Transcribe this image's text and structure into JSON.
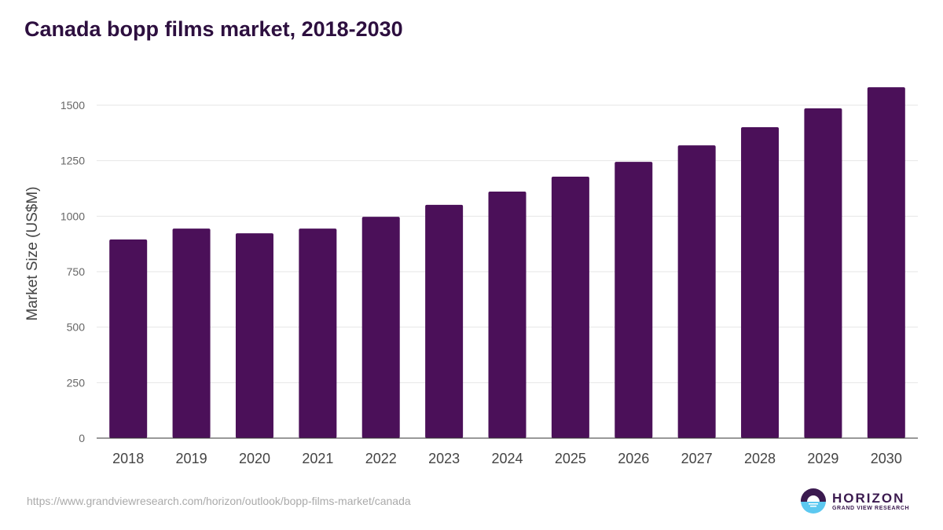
{
  "chart_data": {
    "type": "bar",
    "title": "Canada bopp films market, 2018-2030",
    "xlabel": "",
    "ylabel": "Market Size (US$M)",
    "categories": [
      "2018",
      "2019",
      "2020",
      "2021",
      "2022",
      "2023",
      "2024",
      "2025",
      "2026",
      "2027",
      "2028",
      "2029",
      "2030"
    ],
    "values": [
      895,
      944,
      923,
      944,
      997,
      1051,
      1111,
      1178,
      1245,
      1319,
      1401,
      1486,
      1581
    ],
    "ylim": [
      0,
      1500
    ],
    "yticks": [
      "0",
      "250",
      "500",
      "750",
      "1000",
      "1250",
      "1500"
    ],
    "grid": true,
    "bar_color": "#4b1059"
  },
  "footer": {
    "url": "https://www.grandviewresearch.com/horizon/outlook/bopp-films-market/canada",
    "logo_main": "HORIZON",
    "logo_sub": "GRAND VIEW RESEARCH"
  }
}
